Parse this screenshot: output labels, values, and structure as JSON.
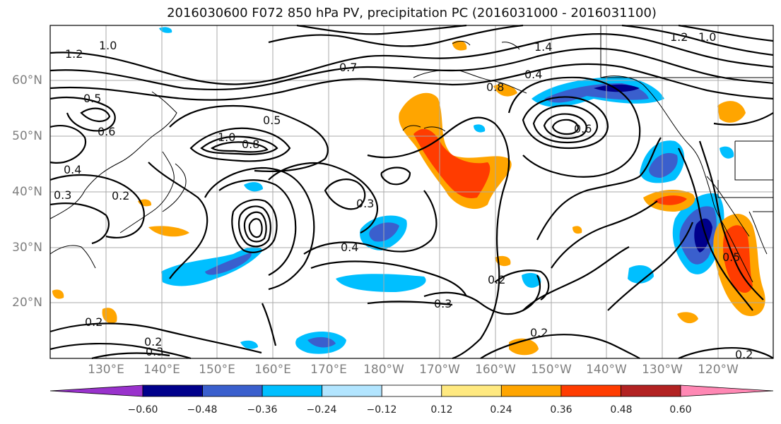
{
  "title": "2016030600 F072 850 hPa PV, precipitation PC (2016031000 - 2016031100)",
  "lat_labels": [
    "60°N",
    "50°N",
    "40°N",
    "30°N",
    "20°N"
  ],
  "lon_labels": [
    "130°E",
    "140°E",
    "150°E",
    "160°E",
    "170°E",
    "180°W",
    "170°W",
    "160°W",
    "150°W",
    "140°W",
    "130°W",
    "120°W"
  ],
  "contour_labels": [
    "1.0",
    "1.2",
    "0.5",
    "0.6",
    "0.4",
    "0.3",
    "0.2",
    "0.7",
    "0.8",
    "1.0",
    "0.5",
    "0.3",
    "0.4",
    "0.3",
    "0.2",
    "0.2",
    "0.4",
    "0.6",
    "0.8",
    "1.2",
    "1.4",
    "1.0",
    "0.5",
    "0.2",
    "0.2",
    "0.3",
    "0.2"
  ],
  "colorbar": {
    "ticks": [
      "−0.60",
      "−0.48",
      "−0.36",
      "−0.24",
      "−0.12",
      "0.12",
      "0.24",
      "0.36",
      "0.48",
      "0.60"
    ],
    "colors": [
      "#9932cc",
      "#00008b",
      "#3a5fcd",
      "#00bfff",
      "#b2e5ff",
      "#ffffff",
      "#ffe980",
      "#ffa500",
      "#ff3c00",
      "#b22222",
      "#ff88b4"
    ]
  },
  "shading_colors": {
    "neg_strong": "#00008b",
    "neg_mid": "#3a5fcd",
    "neg_light": "#00bfff",
    "pos_light": "#ffa500",
    "pos_mid": "#ff3c00",
    "pos_strong": "#b22222"
  }
}
